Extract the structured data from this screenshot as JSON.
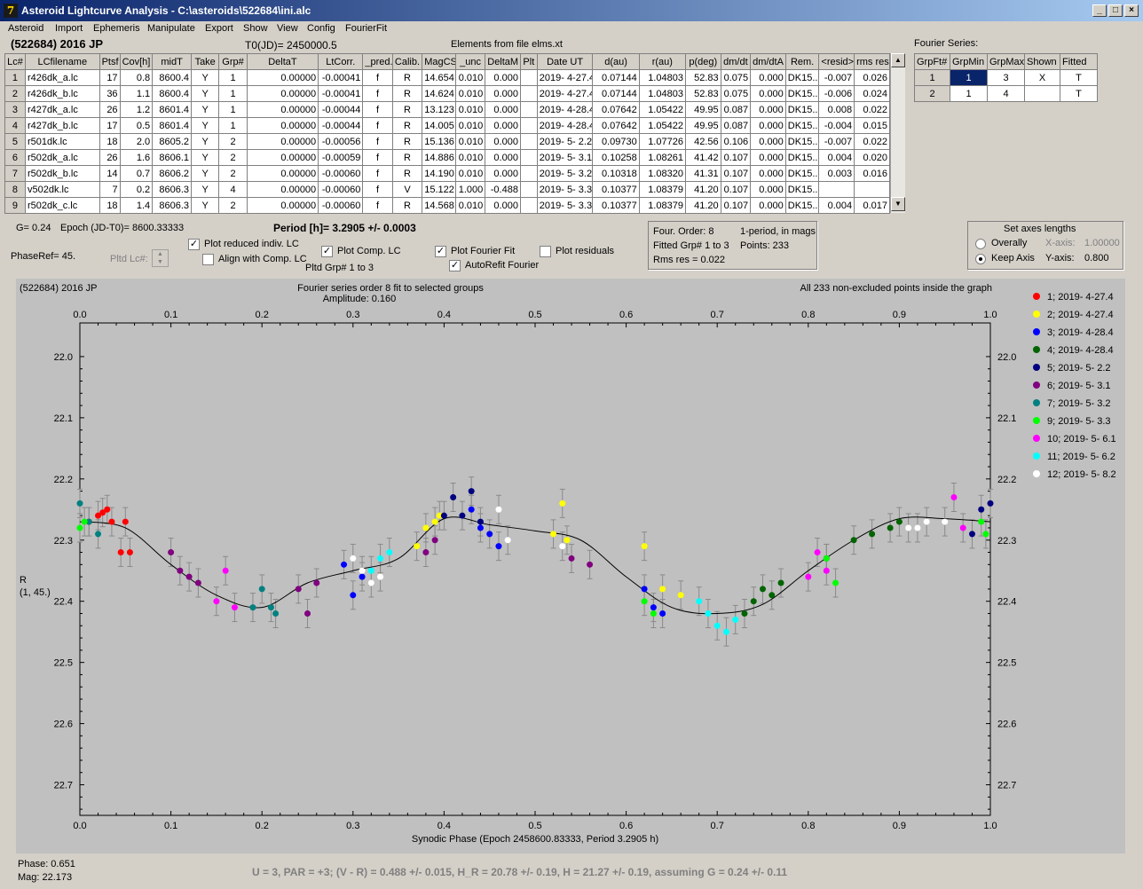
{
  "window": {
    "title": "Asteroid Lightcurve Analysis - C:\\asteroids\\522684\\ini.alc",
    "icon": "7"
  },
  "menu": [
    "Asteroid",
    "Import",
    "Ephemeris",
    "Manipulate",
    "Export",
    "Show",
    "View",
    "Config",
    "FourierFit"
  ],
  "header": {
    "object": "(522684) 2016 JP",
    "t0": "T0(JD)= 2450000.5",
    "elements": "Elements from file elms.xt"
  },
  "lc_table": {
    "columns": [
      "Lc#",
      "LCfilename",
      "Ptsf",
      "Cov[h]",
      "midT",
      "Take",
      "Grp#",
      "DeltaT",
      "LtCorr.",
      "_pred.",
      "Calib.",
      "MagCS",
      "_unc",
      "DeltaM",
      "Plt",
      "Date UT",
      "d(au)",
      "r(au)",
      "p(deg)",
      "dm/dt",
      "dm/dtA",
      "Rem.",
      "<resid>",
      "rms res"
    ],
    "rows": [
      [
        "1",
        "r426dk_a.lc",
        "17",
        "0.8",
        "8600.4",
        "Y",
        "1",
        "0.00000",
        "-0.00041",
        "f",
        "R",
        "14.654",
        "0.010",
        "0.000",
        "",
        "2019- 4-27.4",
        "0.07144",
        "1.04803",
        "52.83",
        "0.075",
        "0.000",
        "DK15...",
        "-0.007",
        "0.026"
      ],
      [
        "2",
        "r426dk_b.lc",
        "36",
        "1.1",
        "8600.4",
        "Y",
        "1",
        "0.00000",
        "-0.00041",
        "f",
        "R",
        "14.624",
        "0.010",
        "0.000",
        "",
        "2019- 4-27.4",
        "0.07144",
        "1.04803",
        "52.83",
        "0.075",
        "0.000",
        "DK15...",
        "-0.006",
        "0.024"
      ],
      [
        "3",
        "r427dk_a.lc",
        "26",
        "1.2",
        "8601.4",
        "Y",
        "1",
        "0.00000",
        "-0.00044",
        "f",
        "R",
        "13.123",
        "0.010",
        "0.000",
        "",
        "2019- 4-28.4",
        "0.07642",
        "1.05422",
        "49.95",
        "0.087",
        "0.000",
        "DK15...",
        "0.008",
        "0.022"
      ],
      [
        "4",
        "r427dk_b.lc",
        "17",
        "0.5",
        "8601.4",
        "Y",
        "1",
        "0.00000",
        "-0.00044",
        "f",
        "R",
        "14.005",
        "0.010",
        "0.000",
        "",
        "2019- 4-28.4",
        "0.07642",
        "1.05422",
        "49.95",
        "0.087",
        "0.000",
        "DK15...",
        "-0.004",
        "0.015"
      ],
      [
        "5",
        "r501dk.lc",
        "18",
        "2.0",
        "8605.2",
        "Y",
        "2",
        "0.00000",
        "-0.00056",
        "f",
        "R",
        "15.136",
        "0.010",
        "0.000",
        "",
        "2019- 5- 2.2",
        "0.09730",
        "1.07726",
        "42.56",
        "0.106",
        "0.000",
        "DK15...",
        "-0.007",
        "0.022"
      ],
      [
        "6",
        "r502dk_a.lc",
        "26",
        "1.6",
        "8606.1",
        "Y",
        "2",
        "0.00000",
        "-0.00059",
        "f",
        "R",
        "14.886",
        "0.010",
        "0.000",
        "",
        "2019- 5- 3.1",
        "0.10258",
        "1.08261",
        "41.42",
        "0.107",
        "0.000",
        "DK15...",
        "0.004",
        "0.020"
      ],
      [
        "7",
        "r502dk_b.lc",
        "14",
        "0.7",
        "8606.2",
        "Y",
        "2",
        "0.00000",
        "-0.00060",
        "f",
        "R",
        "14.190",
        "0.010",
        "0.000",
        "",
        "2019- 5- 3.2",
        "0.10318",
        "1.08320",
        "41.31",
        "0.107",
        "0.000",
        "DK15...",
        "0.003",
        "0.016"
      ],
      [
        "8",
        "v502dk.lc",
        "7",
        "0.2",
        "8606.3",
        "Y",
        "4",
        "0.00000",
        "-0.00060",
        "f",
        "V",
        "15.122",
        "1.000",
        "-0.488",
        "",
        "2019- 5- 3.3",
        "0.10377",
        "1.08379",
        "41.20",
        "0.107",
        "0.000",
        "DK15...",
        "",
        ""
      ],
      [
        "9",
        "r502dk_c.lc",
        "18",
        "1.4",
        "8606.3",
        "Y",
        "2",
        "0.00000",
        "-0.00060",
        "f",
        "R",
        "14.568",
        "0.010",
        "0.000",
        "",
        "2019- 5- 3.3",
        "0.10377",
        "1.08379",
        "41.20",
        "0.107",
        "0.000",
        "DK15...",
        "0.004",
        "0.017"
      ]
    ]
  },
  "fourier_series": {
    "label": "Fourier Series:",
    "columns": [
      "GrpFt#",
      "GrpMin",
      "GrpMax",
      "Shown",
      "Fitted"
    ],
    "rows": [
      [
        "1",
        "1",
        "3",
        "X",
        "T"
      ],
      [
        "2",
        "1",
        "4",
        "",
        "T"
      ]
    ]
  },
  "controls": {
    "g": "G= 0.24",
    "epoch": "Epoch (JD-T0)= 8600.33333",
    "period": "Period [h]= 3.2905 +/- 0.0003",
    "phaseref": "PhaseRef= 45.",
    "pltd_lc": "Pltd Lc#:",
    "plot_reduced": "Plot reduced indiv. LC",
    "align_comp": "Align with Comp. LC",
    "plot_comp": "Plot Comp. LC",
    "pltd_grp": "Pltd Grp#  1   to   3",
    "plot_fourier": "Plot Fourier Fit",
    "autorefit": "AutoRefit Fourier",
    "plot_resid": "Plot residuals"
  },
  "fit_info": {
    "order": "Four. Order:  8",
    "period_mode": "1-period, in mags",
    "fitted": "Fitted Grp# 1 to 3",
    "points": "Points: 233",
    "rms": "Rms res     = 0.022"
  },
  "axes_box": {
    "title": "Set axes lengths",
    "overally": "Overally",
    "keep": "Keep Axis",
    "xaxis_label": "X-axis:",
    "xaxis_val": "1.00000",
    "yaxis_label": "Y-axis:",
    "yaxis_val": "0.800"
  },
  "chart_data": {
    "type": "scatter",
    "object_label": "(522684) 2016 JP",
    "title": "Fourier series order 8 fit to selected groups",
    "subtitle": "Amplitude: 0.160",
    "note": "All 233 non-excluded points inside the graph",
    "xlabel": "Synodic Phase (Epoch 2458600.83333, Period 3.2905 h)",
    "ylabel": "R",
    "ylabel2": "(1, 45.)",
    "xlim": [
      0,
      1
    ],
    "ylim": [
      22.75,
      21.95
    ],
    "y_inverted": true,
    "xticks": [
      "0.0",
      "0.1",
      "0.2",
      "0.3",
      "0.4",
      "0.5",
      "0.6",
      "0.7",
      "0.8",
      "0.9",
      "1.0"
    ],
    "yticks": [
      "22.0",
      "22.1",
      "22.2",
      "22.3",
      "22.4",
      "22.5",
      "22.6",
      "22.7"
    ],
    "fourier_curve": {
      "x": [
        0,
        0.05,
        0.1,
        0.15,
        0.2,
        0.25,
        0.3,
        0.35,
        0.4,
        0.45,
        0.5,
        0.55,
        0.6,
        0.65,
        0.7,
        0.75,
        0.8,
        0.85,
        0.9,
        0.95,
        1.0
      ],
      "y": [
        22.27,
        22.28,
        22.34,
        22.39,
        22.41,
        22.37,
        22.35,
        22.33,
        22.265,
        22.275,
        22.285,
        22.3,
        22.36,
        22.41,
        22.42,
        22.405,
        22.35,
        22.3,
        22.265,
        22.265,
        22.27
      ]
    },
    "series": [
      {
        "name": "1; 2019- 4-27.4",
        "color": "#ff0000",
        "x": [
          0.01,
          0.02,
          0.025,
          0.03,
          0.035,
          0.045,
          0.05,
          0.055
        ],
        "y": [
          22.27,
          22.26,
          22.255,
          22.25,
          22.27,
          22.32,
          22.27,
          22.32
        ]
      },
      {
        "name": "2; 2019- 4-27.4",
        "color": "#ffff00",
        "x": [
          0.37,
          0.38,
          0.39,
          0.395,
          0.52,
          0.53,
          0.535,
          0.62,
          0.64,
          0.66
        ],
        "y": [
          22.31,
          22.28,
          22.27,
          22.26,
          22.29,
          22.24,
          22.3,
          22.31,
          22.38,
          22.39
        ]
      },
      {
        "name": "3; 2019- 4-28.4",
        "color": "#0000ff",
        "x": [
          0.29,
          0.3,
          0.31,
          0.43,
          0.44,
          0.45,
          0.46,
          0.62,
          0.63,
          0.64
        ],
        "y": [
          22.34,
          22.39,
          22.36,
          22.25,
          22.28,
          22.29,
          22.31,
          22.38,
          22.41,
          22.42
        ]
      },
      {
        "name": "4; 2019- 4-28.4",
        "color": "#006400",
        "x": [
          0.73,
          0.74,
          0.75,
          0.76,
          0.77,
          0.82,
          0.85,
          0.87,
          0.89,
          0.9
        ],
        "y": [
          22.42,
          22.4,
          22.38,
          22.39,
          22.37,
          22.33,
          22.3,
          22.29,
          22.28,
          22.27
        ]
      },
      {
        "name": "5; 2019- 5- 2.2",
        "color": "#000080",
        "x": [
          0.4,
          0.41,
          0.42,
          0.43,
          0.44,
          0.98,
          0.99,
          1.0
        ],
        "y": [
          22.26,
          22.23,
          22.26,
          22.22,
          22.27,
          22.29,
          22.25,
          22.24
        ]
      },
      {
        "name": "6; 2019- 5- 3.1",
        "color": "#800080",
        "x": [
          0.1,
          0.11,
          0.12,
          0.13,
          0.24,
          0.25,
          0.26,
          0.38,
          0.39,
          0.54,
          0.56
        ],
        "y": [
          22.32,
          22.35,
          22.36,
          22.37,
          22.38,
          22.42,
          22.37,
          22.32,
          22.3,
          22.33,
          22.34
        ]
      },
      {
        "name": "7; 2019- 5- 3.2",
        "color": "#008080",
        "x": [
          0.0,
          0.01,
          0.02,
          0.19,
          0.2,
          0.21,
          0.215
        ],
        "y": [
          22.24,
          22.27,
          22.29,
          22.41,
          22.38,
          22.41,
          22.42
        ]
      },
      {
        "name": "9; 2019- 5- 3.3",
        "color": "#00ff00",
        "x": [
          0.0,
          0.005,
          0.62,
          0.63,
          0.82,
          0.83,
          0.99,
          0.995
        ],
        "y": [
          22.28,
          22.27,
          22.4,
          22.42,
          22.33,
          22.37,
          22.27,
          22.29
        ]
      },
      {
        "name": "10; 2019- 5- 6.1",
        "color": "#ff00ff",
        "x": [
          0.15,
          0.16,
          0.17,
          0.8,
          0.81,
          0.82,
          0.96,
          0.97
        ],
        "y": [
          22.4,
          22.35,
          22.41,
          22.36,
          22.32,
          22.35,
          22.23,
          22.28
        ]
      },
      {
        "name": "11; 2019- 5- 6.2",
        "color": "#00ffff",
        "x": [
          0.32,
          0.33,
          0.34,
          0.68,
          0.69,
          0.7,
          0.71,
          0.72
        ],
        "y": [
          22.35,
          22.33,
          22.32,
          22.4,
          22.42,
          22.44,
          22.45,
          22.43
        ]
      },
      {
        "name": "12; 2019- 5- 8.2",
        "color": "#ffffff",
        "x": [
          0.3,
          0.31,
          0.32,
          0.33,
          0.46,
          0.47,
          0.53,
          0.91,
          0.92,
          0.93,
          0.95
        ],
        "y": [
          22.33,
          22.35,
          22.37,
          22.36,
          22.25,
          22.3,
          22.31,
          22.28,
          22.28,
          22.27,
          22.27
        ]
      }
    ]
  },
  "status": {
    "phase": "Phase:  0.651",
    "mag": "Mag:    22.173",
    "summary": "U = 3, PAR = +3; (V - R) = 0.488 +/- 0.015, H_R = 20.78 +/- 0.19, H = 21.27 +/- 0.19, assuming G = 0.24 +/- 0.11"
  }
}
